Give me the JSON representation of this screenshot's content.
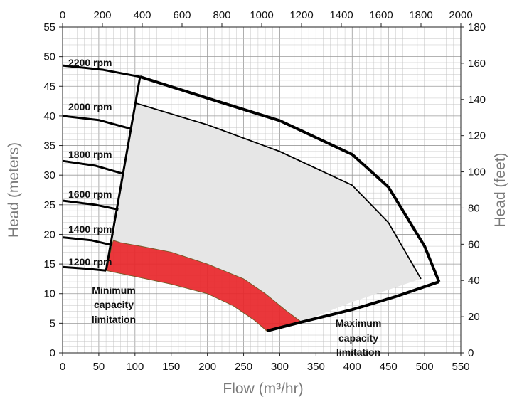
{
  "chart_data": {
    "type": "line",
    "title": "",
    "xlabel": "Flow (m³/hr)",
    "ylabel": "Head (meters)",
    "x2label": "",
    "y2label": "Head (feet)",
    "xlim": [
      0,
      550
    ],
    "ylim": [
      0,
      55
    ],
    "x2lim": [
      0,
      2000
    ],
    "y2lim": [
      0,
      180
    ],
    "x_ticks": [
      "0",
      "50",
      "100",
      "150",
      "200",
      "250",
      "300",
      "350",
      "400",
      "450",
      "500",
      "550"
    ],
    "y_ticks": [
      "0",
      "5",
      "10",
      "15",
      "20",
      "25",
      "30",
      "35",
      "40",
      "45",
      "50",
      "55"
    ],
    "x2_ticks": [
      "0",
      "200",
      "400",
      "600",
      "800",
      "1000",
      "1200",
      "1400",
      "1600",
      "1800",
      "2000"
    ],
    "y2_ticks": [
      "0",
      "20",
      "40",
      "60",
      "80",
      "100",
      "120",
      "140",
      "160",
      "180"
    ],
    "grid": true,
    "series": [
      {
        "name": "2200 rpm",
        "x": [
          0,
          55,
          107
        ],
        "y": [
          48.5,
          47.8,
          46.6
        ]
      },
      {
        "name": "2000 rpm",
        "x": [
          0,
          50,
          95
        ],
        "y": [
          40.0,
          39.3,
          37.8
        ]
      },
      {
        "name": "1800 rpm",
        "x": [
          0,
          45,
          82
        ],
        "y": [
          32.4,
          31.6,
          30.3
        ]
      },
      {
        "name": "1600 rpm",
        "x": [
          0,
          45,
          77
        ],
        "y": [
          25.7,
          25.0,
          24.2
        ]
      },
      {
        "name": "1400 rpm",
        "x": [
          0,
          40,
          68
        ],
        "y": [
          19.5,
          19.0,
          18.2
        ]
      },
      {
        "name": "1200 rpm",
        "x": [
          0,
          35,
          60
        ],
        "y": [
          14.5,
          14.2,
          13.9
        ]
      }
    ],
    "boundaries": [
      {
        "x": [
          107,
          200,
          300,
          400,
          450,
          500,
          520
        ],
        "y": [
          46.6,
          43.0,
          39.2,
          33.5,
          28.0,
          18.0,
          12.0
        ]
      },
      {
        "x": [
          100,
          200,
          300,
          400,
          450,
          495
        ],
        "y": [
          42.2,
          38.5,
          34.0,
          28.3,
          22.0,
          12.5
        ]
      },
      {
        "x": [
          107,
          60
        ],
        "y": [
          46.6,
          13.9
        ]
      },
      {
        "x": [
          282,
          330,
          400,
          460,
          520
        ],
        "y": [
          3.7,
          5.2,
          7.3,
          9.5,
          12.0
        ]
      }
    ],
    "regions": [
      {
        "fill": "#e6e6e6",
        "x": [
          100,
          200,
          300,
          400,
          450,
          495,
          400,
          330,
          310,
          280,
          250,
          200,
          150,
          108,
          80,
          70
        ],
        "y": [
          42.2,
          38.5,
          34.0,
          28.3,
          22.0,
          12.5,
          8.6,
          5.2,
          7.0,
          10.0,
          12.5,
          15.0,
          17.0,
          18.0,
          18.6,
          19.0
        ]
      },
      {
        "fill": "#e8262a",
        "x": [
          70,
          80,
          108,
          150,
          200,
          250,
          280,
          310,
          330,
          282,
          265,
          235,
          200,
          150,
          100,
          60
        ],
        "y": [
          19.0,
          18.6,
          18.0,
          17.0,
          15.0,
          12.5,
          10.0,
          7.0,
          5.2,
          3.7,
          5.5,
          8.0,
          10.0,
          11.6,
          12.9,
          13.9
        ]
      }
    ],
    "curve_labels": [
      "2200 rpm",
      "2000 rpm",
      "1800 rpm",
      "1600 rpm",
      "1400 rpm",
      "1200 rpm"
    ],
    "annotations": [
      {
        "lines": [
          "Minimum",
          "capacity",
          "limitation"
        ]
      },
      {
        "lines": [
          "Maximum",
          "capacity",
          "limitation"
        ]
      }
    ],
    "colors": {
      "envelope_fill": "#e6e6e6",
      "min_region_fill": "#e8262a",
      "line": "#000000",
      "grid": "#c4c4c4"
    }
  }
}
